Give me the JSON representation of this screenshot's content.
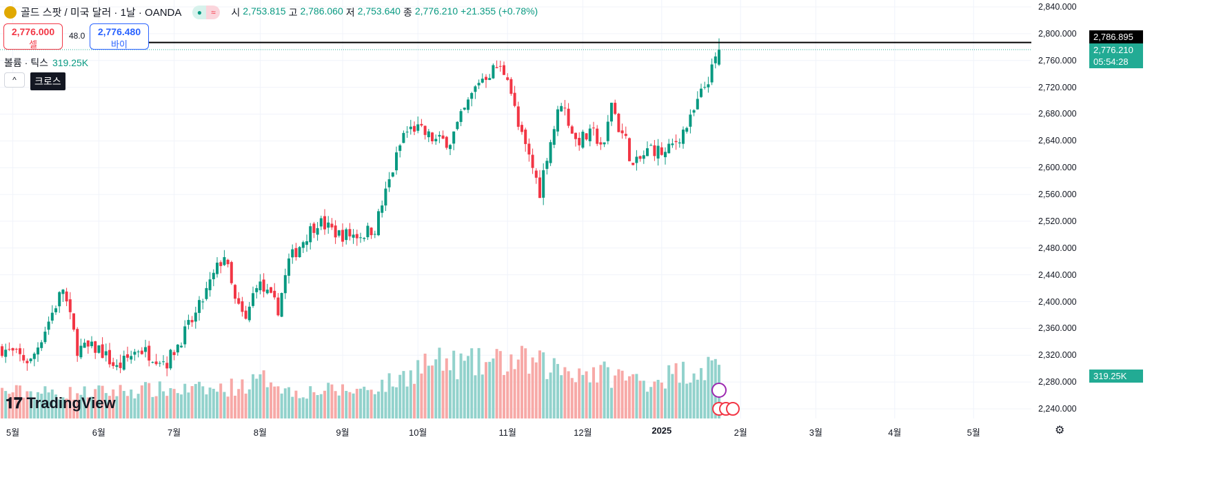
{
  "header": {
    "symbol_title": "골드 스팟 / 미국 달러 · 1날 · OANDA",
    "tooltip": "크로스",
    "ohlc": [
      {
        "label": "시",
        "value": "2,753.815"
      },
      {
        "label": "고",
        "value": "2,786.060"
      },
      {
        "label": "저",
        "value": "2,753.640"
      },
      {
        "label": "종",
        "value": "2,776.210"
      }
    ],
    "change": "+21.355 (+0.78%)"
  },
  "trade": {
    "sell_price": "2,776.000",
    "sell_label": "셀",
    "spread": "48.0",
    "buy_price": "2,776.480",
    "buy_label": "바이"
  },
  "volume_legend": {
    "label": "볼륨 · 틱스",
    "value": "319.25K"
  },
  "price_tags": {
    "crosshair": "2,786.895",
    "last": "2,776.210",
    "countdown": "05:54:28",
    "volume": "319.25K"
  },
  "logo": "TradingView",
  "colors": {
    "up": "#089981",
    "down": "#f23645",
    "vol_up": "#92d2cc",
    "vol_down": "#f7a9a7"
  },
  "chart_data": {
    "type": "candlestick",
    "yticks": [
      "2,840.000",
      "2,800.000",
      "2,760.000",
      "2,720.000",
      "2,680.000",
      "2,640.000",
      "2,600.000",
      "2,560.000",
      "2,520.000",
      "2,480.000",
      "2,440.000",
      "2,400.000",
      "2,360.000",
      "2,320.000",
      "2,280.000",
      "2,240.000"
    ],
    "ylim": [
      2240,
      2840
    ],
    "xticks": [
      {
        "label": "5월",
        "day": 3
      },
      {
        "label": "6월",
        "day": 27
      },
      {
        "label": "7월",
        "day": 48
      },
      {
        "label": "8월",
        "day": 72
      },
      {
        "label": "9월",
        "day": 95
      },
      {
        "label": "10월",
        "day": 116
      },
      {
        "label": "11월",
        "day": 141
      },
      {
        "label": "12월",
        "day": 162
      },
      {
        "label": "2025",
        "day": 184
      },
      {
        "label": "2월",
        "day": 206
      },
      {
        "label": "3월",
        "day": 227
      },
      {
        "label": "4월",
        "day": 249
      },
      {
        "label": "5월",
        "day": 271
      }
    ],
    "x_days": 288,
    "price_keypoints": [
      [
        0,
        2330
      ],
      [
        8,
        2310
      ],
      [
        17,
        2420
      ],
      [
        21,
        2330
      ],
      [
        27,
        2330
      ],
      [
        32,
        2300
      ],
      [
        38,
        2330
      ],
      [
        46,
        2310
      ],
      [
        54,
        2380
      ],
      [
        60,
        2450
      ],
      [
        62,
        2470
      ],
      [
        65,
        2400
      ],
      [
        68,
        2370
      ],
      [
        71,
        2430
      ],
      [
        77,
        2390
      ],
      [
        80,
        2460
      ],
      [
        85,
        2500
      ],
      [
        88,
        2520
      ],
      [
        94,
        2500
      ],
      [
        100,
        2500
      ],
      [
        104,
        2510
      ],
      [
        108,
        2580
      ],
      [
        112,
        2650
      ],
      [
        115,
        2660
      ],
      [
        121,
        2640
      ],
      [
        125,
        2640
      ],
      [
        133,
        2730
      ],
      [
        138,
        2750
      ],
      [
        141,
        2740
      ],
      [
        144,
        2660
      ],
      [
        148,
        2600
      ],
      [
        150,
        2565
      ],
      [
        152,
        2620
      ],
      [
        156,
        2700
      ],
      [
        160,
        2640
      ],
      [
        165,
        2650
      ],
      [
        168,
        2630
      ],
      [
        170,
        2700
      ],
      [
        172,
        2660
      ],
      [
        174,
        2640
      ],
      [
        176,
        2600
      ],
      [
        181,
        2630
      ],
      [
        185,
        2620
      ],
      [
        188,
        2640
      ],
      [
        192,
        2670
      ],
      [
        195,
        2710
      ],
      [
        198,
        2745
      ],
      [
        200,
        2776
      ]
    ],
    "volume_keypoints_k": [
      [
        0,
        160
      ],
      [
        20,
        150
      ],
      [
        40,
        170
      ],
      [
        60,
        170
      ],
      [
        72,
        220
      ],
      [
        75,
        250
      ],
      [
        80,
        160
      ],
      [
        100,
        170
      ],
      [
        110,
        220
      ],
      [
        118,
        330
      ],
      [
        130,
        320
      ],
      [
        144,
        340
      ],
      [
        155,
        300
      ],
      [
        170,
        260
      ],
      [
        180,
        220
      ],
      [
        190,
        280
      ],
      [
        200,
        319
      ]
    ],
    "crosshair_price": 2786.895,
    "last_price": 2776.21
  }
}
